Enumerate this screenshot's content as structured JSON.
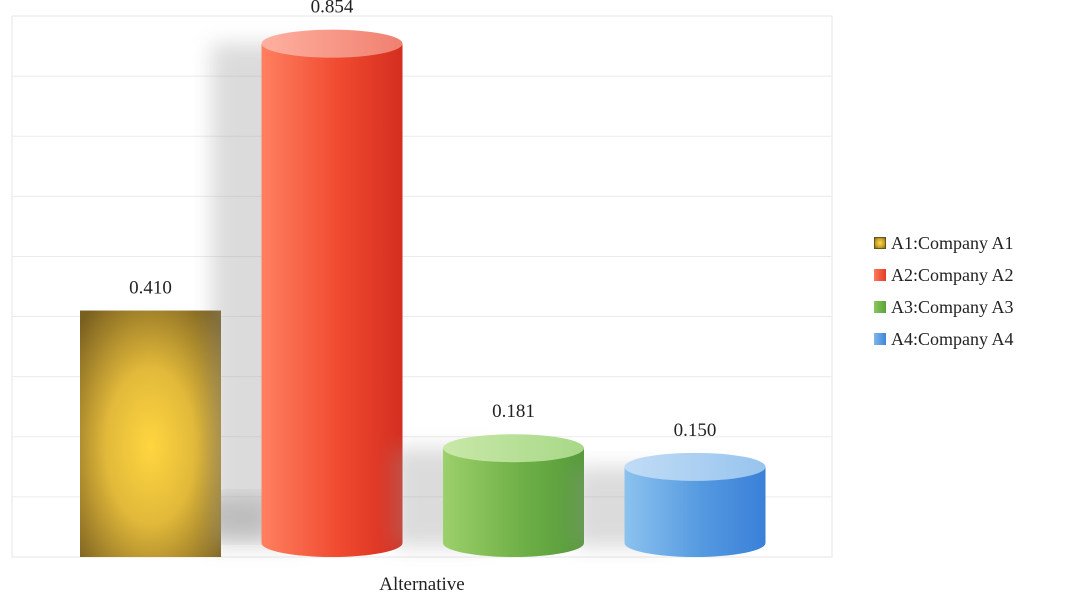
{
  "chart_data": {
    "type": "bar",
    "title": "",
    "xlabel": "Alternative",
    "ylabel": "",
    "categories": [
      "Alternative"
    ],
    "ylim": [
      0,
      0.9
    ],
    "grid": true,
    "legend_position": "right",
    "series": [
      {
        "name": "A1:Company A1",
        "values": [
          0.41
        ],
        "label": "0.410",
        "color": "#d4a82a"
      },
      {
        "name": "A2:Company A2",
        "values": [
          0.854
        ],
        "label": "0.854",
        "color": "#f04a30"
      },
      {
        "name": "A3:Company A3",
        "values": [
          0.181
        ],
        "label": "0.181",
        "color": "#6fb047"
      },
      {
        "name": "A4:Company A4",
        "values": [
          0.15
        ],
        "label": "0.150",
        "color": "#5499e0"
      }
    ]
  }
}
